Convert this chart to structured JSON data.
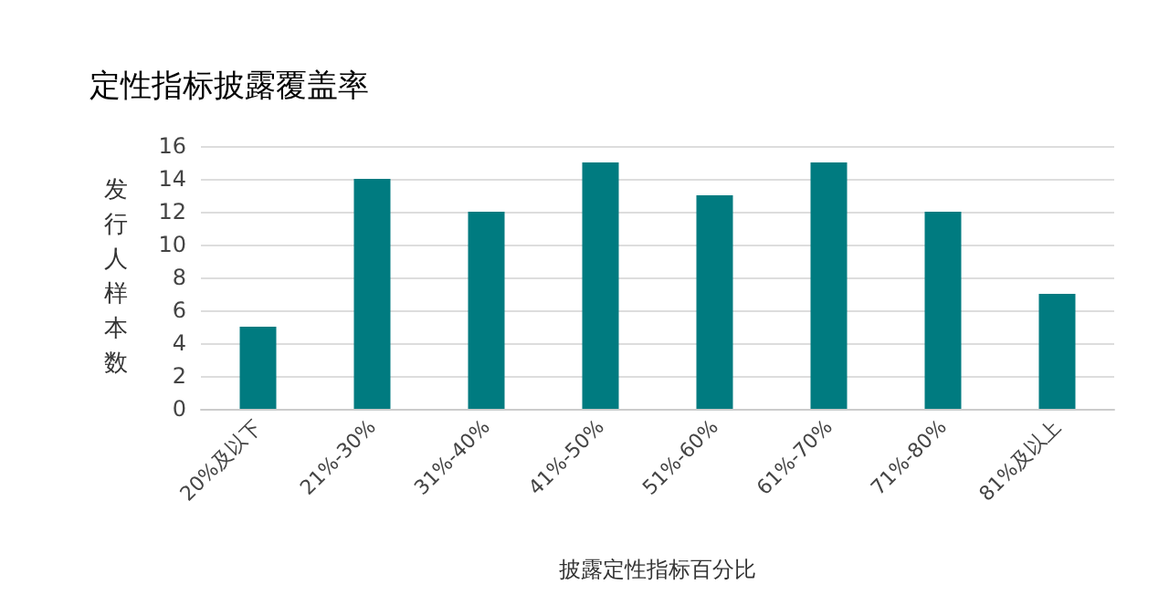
{
  "chart_data": {
    "type": "bar",
    "title": "定性指标披露覆盖率",
    "xlabel": "披露定性指标百分比",
    "ylabel": "发行人样本数",
    "categories": [
      "20%及以下",
      "21%-30%",
      "31%-40%",
      "41%-50%",
      "51%-60%",
      "61%-70%",
      "71%-80%",
      "81%及以上"
    ],
    "values": [
      5,
      14,
      12,
      15,
      13,
      15,
      12,
      7
    ],
    "color": "#007b80",
    "ylim": [
      0,
      16
    ],
    "yticks": [
      0,
      2,
      4,
      6,
      8,
      10,
      12,
      14,
      16
    ],
    "grid": "y"
  }
}
